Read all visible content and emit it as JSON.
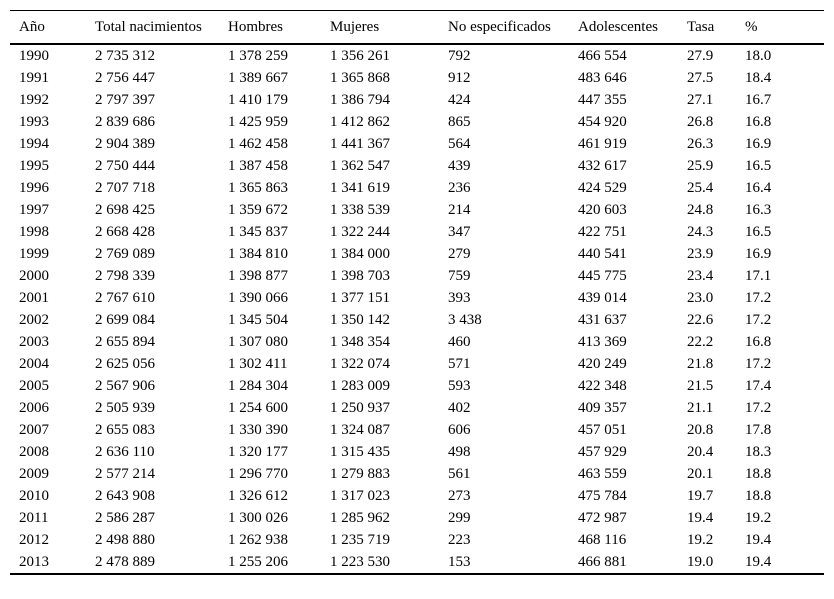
{
  "table": {
    "columns": [
      "Año",
      "Total nacimientos",
      "Hombres",
      "Mujeres",
      "No especificados",
      "Adolescentes",
      "Tasa",
      "%"
    ],
    "column_keys": [
      "anio",
      "total-nacimientos",
      "hombres",
      "mujeres",
      "no-especificados",
      "adolescentes",
      "tasa",
      "porcentaje"
    ],
    "rows": [
      [
        "1990",
        "2 735 312",
        "1 378 259",
        "1 356 261",
        "792",
        "466 554",
        "27.9",
        "18.0"
      ],
      [
        "1991",
        "2 756 447",
        "1 389 667",
        "1 365 868",
        "912",
        "483 646",
        "27.5",
        "18.4"
      ],
      [
        "1992",
        "2 797 397",
        "1 410 179",
        "1 386 794",
        "424",
        "447 355",
        "27.1",
        "16.7"
      ],
      [
        "1993",
        "2 839 686",
        "1 425 959",
        "1 412 862",
        "865",
        "454 920",
        "26.8",
        "16.8"
      ],
      [
        "1994",
        "2 904 389",
        "1 462 458",
        "1 441 367",
        "564",
        "461 919",
        "26.3",
        "16.9"
      ],
      [
        "1995",
        "2 750 444",
        "1 387 458",
        "1 362 547",
        "439",
        "432 617",
        "25.9",
        "16.5"
      ],
      [
        "1996",
        "2 707 718",
        "1 365 863",
        "1 341 619",
        "236",
        "424 529",
        "25.4",
        "16.4"
      ],
      [
        "1997",
        "2 698 425",
        "1 359 672",
        "1 338 539",
        "214",
        "420 603",
        "24.8",
        "16.3"
      ],
      [
        "1998",
        "2 668 428",
        "1 345 837",
        "1 322 244",
        "347",
        "422 751",
        "24.3",
        "16.5"
      ],
      [
        "1999",
        "2 769 089",
        "1 384 810",
        "1 384 000",
        "279",
        "440 541",
        "23.9",
        "16.9"
      ],
      [
        "2000",
        "2 798 339",
        "1 398 877",
        "1 398 703",
        "759",
        "445 775",
        "23.4",
        "17.1"
      ],
      [
        "2001",
        "2 767 610",
        "1 390 066",
        "1 377 151",
        "393",
        "439 014",
        "23.0",
        "17.2"
      ],
      [
        "2002",
        "2 699 084",
        "1 345 504",
        "1 350 142",
        "3 438",
        "431 637",
        "22.6",
        "17.2"
      ],
      [
        "2003",
        "2 655 894",
        "1 307 080",
        "1 348 354",
        "460",
        "413 369",
        "22.2",
        "16.8"
      ],
      [
        "2004",
        "2 625 056",
        "1 302 411",
        "1 322 074",
        "571",
        "420 249",
        "21.8",
        "17.2"
      ],
      [
        "2005",
        "2 567 906",
        "1 284 304",
        "1 283 009",
        "593",
        "422 348",
        "21.5",
        "17.4"
      ],
      [
        "2006",
        "2 505 939",
        "1 254 600",
        "1 250 937",
        "402",
        "409 357",
        "21.1",
        "17.2"
      ],
      [
        "2007",
        "2 655 083",
        "1 330 390",
        "1 324 087",
        "606",
        "457 051",
        "20.8",
        "17.8"
      ],
      [
        "2008",
        "2 636 110",
        "1 320 177",
        "1 315 435",
        "498",
        "457 929",
        "20.4",
        "18.3"
      ],
      [
        "2009",
        "2 577 214",
        "1 296 770",
        "1 279 883",
        "561",
        "463 559",
        "20.1",
        "18.8"
      ],
      [
        "2010",
        "2 643 908",
        "1 326 612",
        "1 317 023",
        "273",
        "475 784",
        "19.7",
        "18.8"
      ],
      [
        "2011",
        "2 586 287",
        "1 300 026",
        "1 285 962",
        "299",
        "472 987",
        "19.4",
        "19.2"
      ],
      [
        "2012",
        "2 498 880",
        "1 262 938",
        "1 235 719",
        "223",
        "468 116",
        "19.2",
        "19.4"
      ],
      [
        "2013",
        "2 478 889",
        "1 255 206",
        "1 223 530",
        "153",
        "466 881",
        "19.0",
        "19.4"
      ]
    ]
  }
}
